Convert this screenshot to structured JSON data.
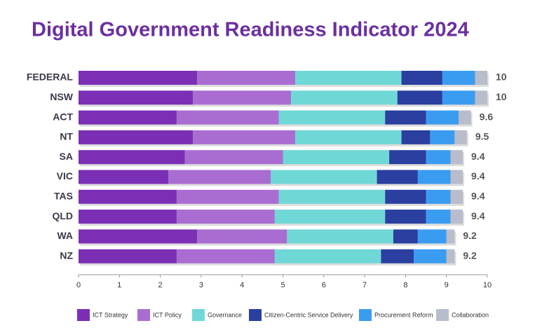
{
  "chart_data": {
    "type": "stacked-bar-horizontal",
    "title": "Digital Government Readiness Indicator 2024",
    "categories": [
      "FEDERAL",
      "NSW",
      "ACT",
      "NT",
      "SA",
      "VIC",
      "TAS",
      "QLD",
      "WA",
      "NZ"
    ],
    "series": [
      {
        "name": "ICT Strategy",
        "color": "#7b2fb5",
        "values": [
          2.9,
          2.8,
          2.4,
          2.8,
          2.6,
          2.2,
          2.4,
          2.4,
          2.9,
          2.4
        ]
      },
      {
        "name": "ICT Policy",
        "color": "#a96dd2",
        "values": [
          2.4,
          2.4,
          2.5,
          2.5,
          2.4,
          2.5,
          2.5,
          2.4,
          2.2,
          2.4
        ]
      },
      {
        "name": "Governance",
        "color": "#6fd8d6",
        "values": [
          2.6,
          2.6,
          2.6,
          2.6,
          2.6,
          2.6,
          2.6,
          2.7,
          2.6,
          2.6
        ]
      },
      {
        "name": "Citizen-Centric Service Delivery",
        "color": "#2a3f9f",
        "values": [
          1.0,
          1.1,
          1.0,
          0.7,
          0.9,
          1.0,
          1.0,
          1.0,
          0.6,
          0.8
        ]
      },
      {
        "name": "Procurement Reform",
        "color": "#3a9cf0",
        "values": [
          0.8,
          0.8,
          0.8,
          0.6,
          0.6,
          0.8,
          0.6,
          0.6,
          0.7,
          0.8
        ]
      },
      {
        "name": "Collaboration",
        "color": "#b9bccb",
        "values": [
          0.3,
          0.3,
          0.3,
          0.3,
          0.3,
          0.3,
          0.3,
          0.3,
          0.2,
          0.2
        ]
      }
    ],
    "totals": [
      10,
      10,
      9.6,
      9.5,
      9.4,
      9.4,
      9.4,
      9.4,
      9.2,
      9.2
    ],
    "xlim": [
      0,
      10
    ],
    "xticks": [
      0,
      1,
      2,
      3,
      4,
      5,
      6,
      7,
      8,
      9,
      10
    ]
  }
}
